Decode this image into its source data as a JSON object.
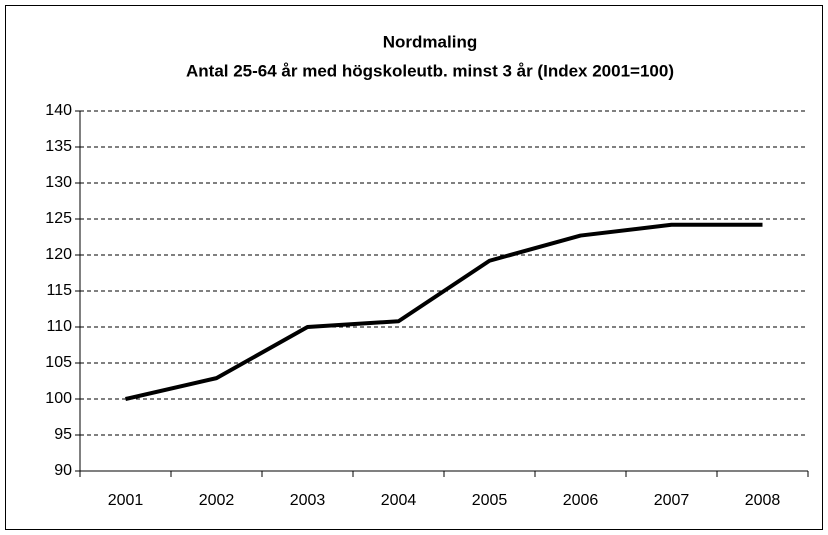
{
  "chart_data": {
    "type": "line",
    "title": "Nordmaling",
    "subtitle": "Antal 25-64 år med högskoleutb. minst 3 år (Index 2001=100)",
    "categories": [
      "2001",
      "2002",
      "2003",
      "2004",
      "2005",
      "2006",
      "2007",
      "2008"
    ],
    "values": [
      100,
      102.9,
      110,
      110.8,
      119.2,
      122.7,
      124.2,
      124.2
    ],
    "color": "#000000",
    "ylim": [
      90,
      140
    ],
    "yticks": [
      90,
      95,
      100,
      105,
      110,
      115,
      120,
      125,
      130,
      135,
      140
    ],
    "grid": true
  }
}
